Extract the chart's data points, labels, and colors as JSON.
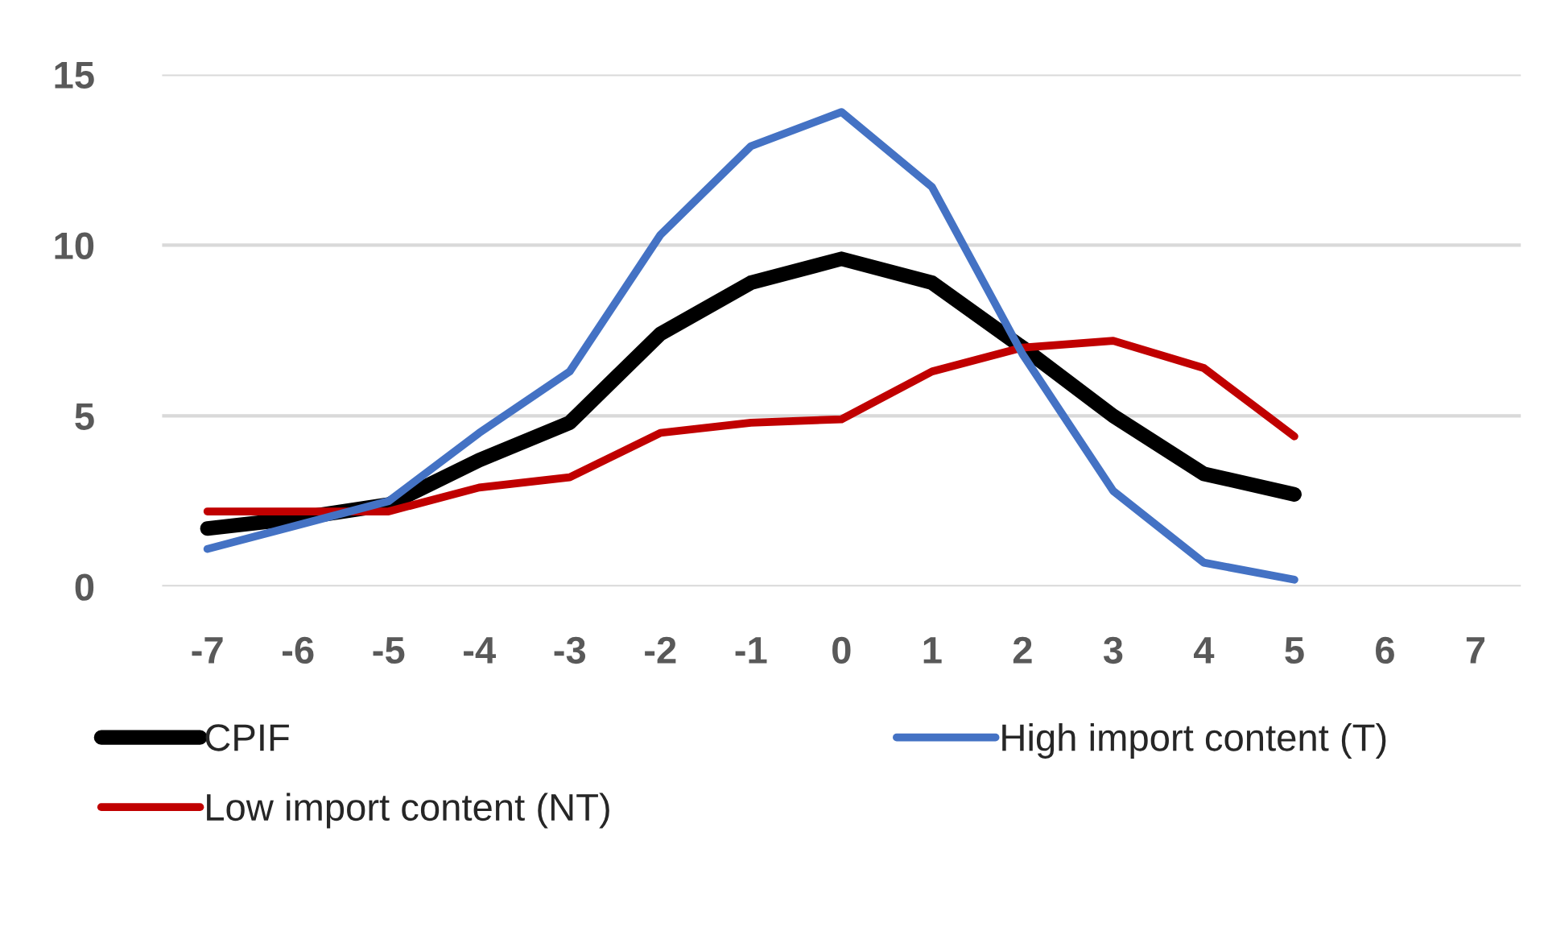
{
  "chart_data": {
    "type": "line",
    "categories": [
      "-7",
      "-6",
      "-5",
      "-4",
      "-3",
      "-2",
      "-1",
      "0",
      "1",
      "2",
      "3",
      "4",
      "5",
      "6",
      "7"
    ],
    "series": [
      {
        "name": "CPIF",
        "color": "#000000",
        "values": [
          1.7,
          2.0,
          2.4,
          3.7,
          4.8,
          7.4,
          8.9,
          9.6,
          8.9,
          7.0,
          5.0,
          3.3,
          2.7,
          null,
          null
        ]
      },
      {
        "name": "Low import content (NT)",
        "color": "#c00000",
        "values": [
          2.2,
          2.2,
          2.2,
          2.9,
          3.2,
          4.5,
          4.8,
          4.9,
          6.3,
          7.0,
          7.2,
          6.4,
          4.4,
          null,
          null
        ]
      },
      {
        "name": "High import content (T)",
        "color": "#4472c4",
        "values": [
          1.1,
          1.8,
          2.5,
          4.5,
          6.3,
          10.3,
          12.9,
          13.9,
          11.7,
          6.8,
          2.8,
          0.7,
          0.2,
          null,
          null
        ]
      }
    ],
    "ylim": [
      0,
      15
    ],
    "yticks": [
      0,
      5,
      10,
      15
    ],
    "grid": "y",
    "legend": "bottom",
    "marker": "none",
    "line_style": "solid"
  }
}
